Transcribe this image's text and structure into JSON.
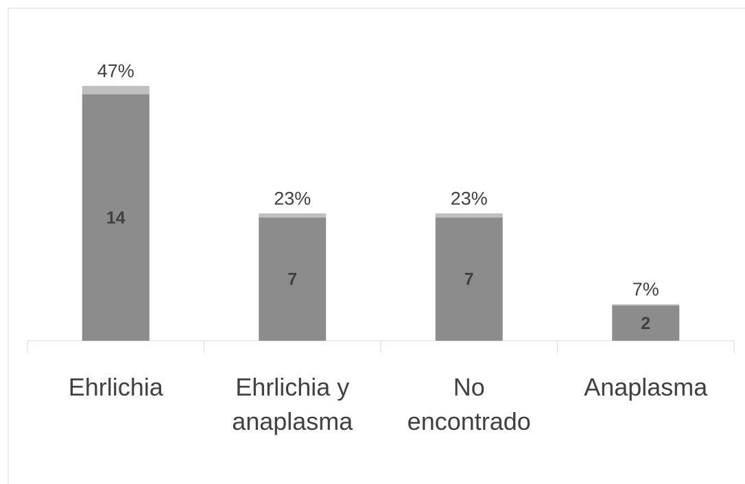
{
  "chart_data": {
    "type": "bar",
    "stacked": true,
    "categories": [
      "Ehrlichia",
      "Ehrlichia y anaplasma",
      "No encontrado",
      "Anaplasma"
    ],
    "series": [
      {
        "color": "#8c8c8c",
        "values": [
          14,
          7,
          7,
          2
        ]
      },
      {
        "color": "#bfbfbf",
        "values": [
          0.47,
          0.23,
          0.23,
          0.07
        ],
        "value_labels": [
          "47%",
          "23%",
          "23%",
          "7%"
        ]
      }
    ],
    "ylim": [
      0,
      16
    ]
  }
}
